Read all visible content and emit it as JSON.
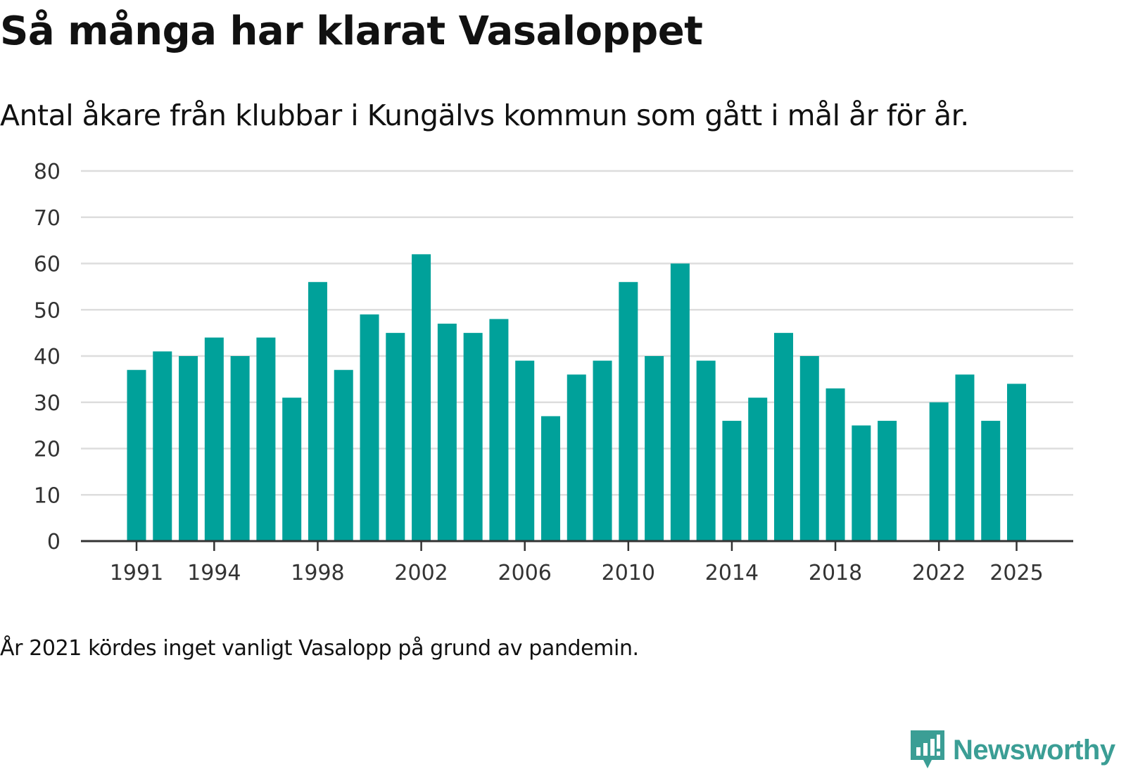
{
  "title": "Så många har klarat Vasaloppet",
  "subtitle": "Antal åkare från klubbar i Kungälvs kommun som gått i mål år för år.",
  "note": "År 2021 kördes inget vanligt Vasalopp på grund av pandemin.",
  "brand": {
    "name": "Newsworthy",
    "color": "#3b9e95",
    "icon": "newsworthy-chart-icon"
  },
  "colors": {
    "bar": "#00a19a",
    "grid": "#dddddd",
    "axis": "#333333"
  },
  "chart_data": {
    "type": "bar",
    "title": "Så många har klarat Vasaloppet",
    "xlabel": "",
    "ylabel": "",
    "ylim": [
      0,
      80
    ],
    "yticks": [
      0,
      10,
      20,
      30,
      40,
      50,
      60,
      70,
      80
    ],
    "xtick_labels": [
      "1991",
      "1994",
      "1998",
      "2002",
      "2006",
      "2010",
      "2014",
      "2018",
      "2022",
      "2025"
    ],
    "categories": [
      "1991",
      "1992",
      "1993",
      "1994",
      "1995",
      "1996",
      "1997",
      "1998",
      "1999",
      "2000",
      "2001",
      "2002",
      "2003",
      "2004",
      "2005",
      "2006",
      "2007",
      "2008",
      "2009",
      "2010",
      "2011",
      "2012",
      "2013",
      "2014",
      "2015",
      "2016",
      "2017",
      "2018",
      "2019",
      "2020",
      "2021",
      "2022",
      "2023",
      "2024",
      "2025"
    ],
    "values": [
      37,
      41,
      40,
      44,
      40,
      44,
      31,
      56,
      37,
      49,
      45,
      62,
      47,
      45,
      48,
      39,
      27,
      36,
      39,
      56,
      40,
      60,
      39,
      26,
      31,
      45,
      40,
      33,
      25,
      26,
      null,
      30,
      36,
      26,
      34
    ]
  }
}
